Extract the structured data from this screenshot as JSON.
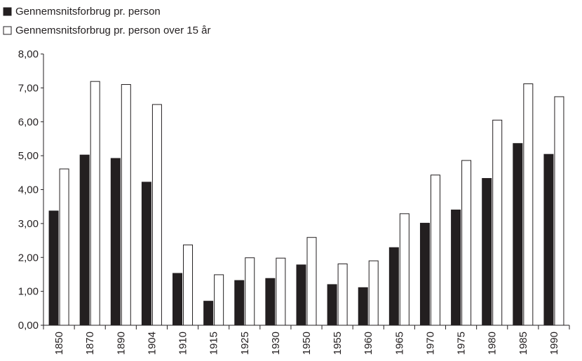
{
  "chart_data": {
    "type": "bar",
    "categories": [
      "1850",
      "1870",
      "1890",
      "1904",
      "1910",
      "1915",
      "1925",
      "1930",
      "1950",
      "1955",
      "1960",
      "1965",
      "1970",
      "1975",
      "1980",
      "1985",
      "1990"
    ],
    "series": [
      {
        "name": "Gennemsnitsforbrug pr. person",
        "fill": "#231f20",
        "values": [
          3.37,
          5.02,
          4.92,
          4.22,
          1.53,
          0.71,
          1.32,
          1.38,
          1.78,
          1.2,
          1.11,
          2.29,
          3.01,
          3.4,
          4.33,
          5.36,
          5.04
        ]
      },
      {
        "name": "Gennemsnitsforbrug pr. person over 15 år",
        "fill": "#ffffff",
        "values": [
          4.61,
          7.19,
          7.1,
          6.51,
          2.37,
          1.49,
          1.99,
          1.98,
          2.59,
          1.81,
          1.9,
          3.29,
          4.43,
          4.86,
          6.05,
          7.12,
          6.74
        ]
      }
    ],
    "ylim": [
      0,
      8
    ],
    "yticks": [
      "0,00",
      "1,00",
      "2,00",
      "3,00",
      "4,00",
      "5,00",
      "6,00",
      "7,00",
      "8,00"
    ],
    "legend_position": "top-left",
    "grid": false
  }
}
